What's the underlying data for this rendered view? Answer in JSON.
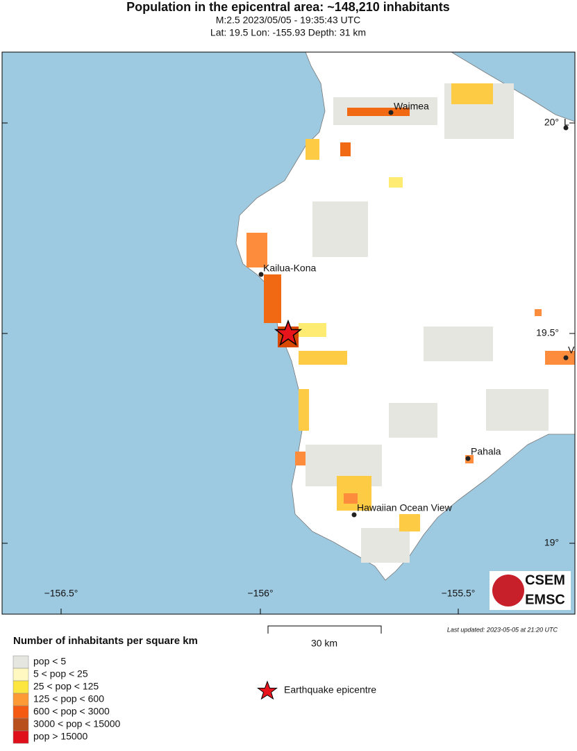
{
  "header": {
    "title": "Population in the epicentral area: ~148,210 inhabitants",
    "line1": "M:2.5 2023/05/05 - 19:35:43 UTC",
    "line2": "Lat: 19.5 Lon: -155.93 Depth: 31 km"
  },
  "map": {
    "lon_labels": [
      "−156.5°",
      "−156°",
      "−155.5°"
    ],
    "lat_labels": [
      "20°",
      "19.5°",
      "19°"
    ],
    "places": [
      "Waimea",
      "Kailua-Kona",
      "Pahala",
      "Hawaiian Ocean View",
      "L",
      "V"
    ],
    "logo": [
      "CSEM",
      "EMSC"
    ]
  },
  "footer": {
    "scale": "30 km",
    "updated": "Last updated: 2023-05-05 at 21:20 UTC",
    "legend_title": "Number of inhabitants per square km",
    "legend": [
      "pop < 5",
      "5 < pop < 25",
      "25 < pop < 125",
      "125 < pop < 600",
      "600 < pop < 3000",
      "3000 < pop < 15000",
      "pop > 15000"
    ],
    "epicentre": "Earthquake epicentre"
  }
}
